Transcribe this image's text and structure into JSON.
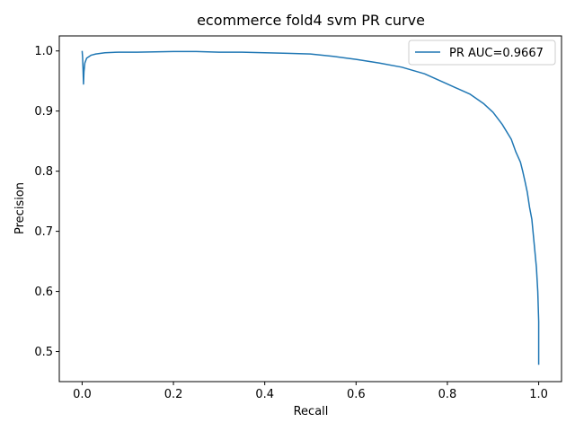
{
  "chart_data": {
    "type": "line",
    "title": "ecommerce fold4 svm PR curve",
    "xlabel": "Recall",
    "ylabel": "Precision",
    "xlim": [
      -0.05,
      1.05
    ],
    "ylim": [
      0.45,
      1.025
    ],
    "xticks": [
      "0.0",
      "0.2",
      "0.4",
      "0.6",
      "0.8",
      "1.0"
    ],
    "yticks": [
      "0.5",
      "0.6",
      "0.7",
      "0.8",
      "0.9",
      "1.0"
    ],
    "grid": false,
    "legend_position": "upper-right",
    "series": [
      {
        "name": "PR AUC=0.9667",
        "color": "#1f77b4",
        "x": [
          0.0,
          0.001,
          0.002,
          0.003,
          0.004,
          0.006,
          0.01,
          0.02,
          0.03,
          0.05,
          0.08,
          0.12,
          0.2,
          0.25,
          0.3,
          0.35,
          0.4,
          0.45,
          0.5,
          0.55,
          0.6,
          0.65,
          0.7,
          0.75,
          0.8,
          0.85,
          0.88,
          0.9,
          0.92,
          0.94,
          0.95,
          0.96,
          0.965,
          0.97,
          0.975,
          0.98,
          0.985,
          0.99,
          0.995,
          0.998,
          1.0,
          1.0
        ],
        "y": [
          1.0,
          0.99,
          0.97,
          0.945,
          0.965,
          0.98,
          0.988,
          0.993,
          0.995,
          0.997,
          0.998,
          0.998,
          0.999,
          0.999,
          0.998,
          0.998,
          0.997,
          0.996,
          0.995,
          0.991,
          0.986,
          0.98,
          0.973,
          0.962,
          0.945,
          0.928,
          0.912,
          0.898,
          0.878,
          0.853,
          0.832,
          0.815,
          0.8,
          0.783,
          0.765,
          0.74,
          0.72,
          0.68,
          0.64,
          0.6,
          0.55,
          0.478
        ]
      }
    ]
  }
}
